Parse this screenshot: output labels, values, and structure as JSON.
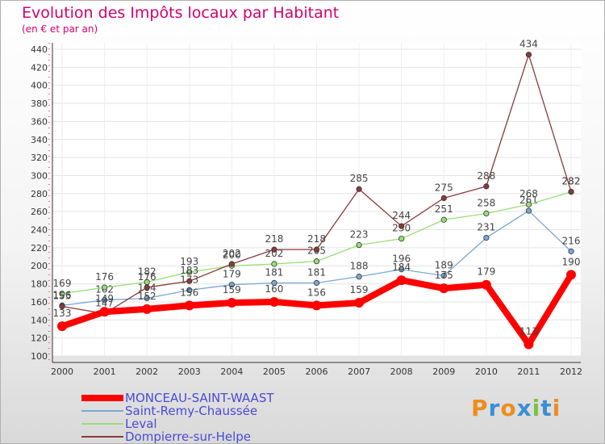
{
  "chart_data": {
    "type": "line",
    "title": "Evolution des Impôts locaux par Habitant",
    "subtitle": "(en € et par an)",
    "xlabel": "",
    "ylabel": "",
    "x": [
      "2000",
      "2001",
      "2002",
      "2003",
      "2004",
      "2005",
      "2006",
      "2007",
      "2008",
      "2009",
      "2010",
      "2011",
      "2012"
    ],
    "ylim": [
      100,
      440
    ],
    "yticks": [
      100,
      120,
      140,
      160,
      180,
      200,
      220,
      240,
      260,
      280,
      300,
      320,
      340,
      360,
      380,
      400,
      420,
      440
    ],
    "grid": true,
    "legend_position": "bottom-left",
    "series": [
      {
        "name": "MONCEAU-SAINT-WAAST",
        "color": "#ff0000",
        "values": [
          133,
          149,
          152,
          156,
          159,
          160,
          156,
          159,
          184,
          175,
          179,
          113,
          190
        ]
      },
      {
        "name": "Saint-Remy-Chaussée",
        "color": "#7aa8d2",
        "values": [
          156,
          162,
          164,
          173,
          179,
          181,
          181,
          188,
          196,
          189,
          231,
          261,
          216
        ]
      },
      {
        "name": "Leval",
        "color": "#99dd77",
        "values": [
          169,
          176,
          182,
          193,
          200,
          202,
          205,
          223,
          230,
          251,
          258,
          268,
          282
        ]
      },
      {
        "name": "Dompierre-sur-Helpe",
        "color": "#8b3a3a",
        "values": [
          155,
          147,
          176,
          183,
          202,
          218,
          218,
          285,
          244,
          275,
          288,
          434,
          282
        ]
      }
    ]
  },
  "logo": {
    "text": "Proxiti",
    "colors": [
      "#f08c1e",
      "#3a8fd6",
      "#f08c1e",
      "#3a8fd6",
      "#7cc242",
      "#3a8fd6",
      "#f08c1e"
    ]
  }
}
